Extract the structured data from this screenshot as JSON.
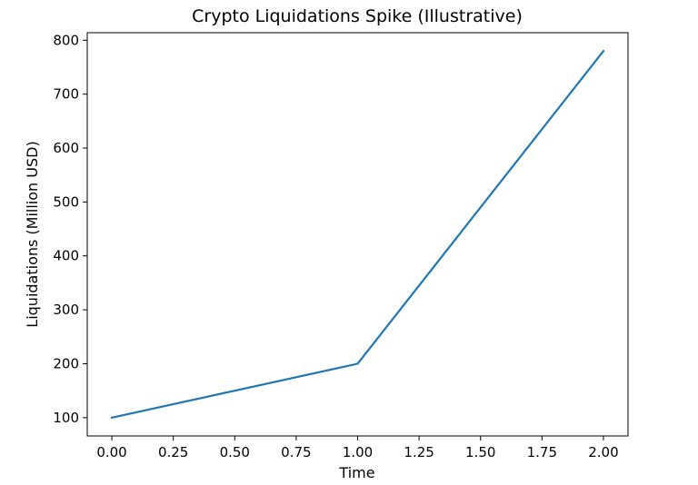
{
  "chart_data": {
    "type": "line",
    "title": "Crypto Liquidations Spike (Illustrative)",
    "xlabel": "Time",
    "ylabel": "Liquidations (Million USD)",
    "x": [
      0,
      1,
      2
    ],
    "series": [
      {
        "values": [
          100,
          200,
          780
        ],
        "color": "#1f77b4"
      }
    ],
    "xlim": [
      -0.1,
      2.1
    ],
    "ylim": [
      66,
      814
    ],
    "xticks": [
      0.0,
      0.25,
      0.5,
      0.75,
      1.0,
      1.25,
      1.5,
      1.75,
      2.0
    ],
    "xtick_labels": [
      "0.00",
      "0.25",
      "0.50",
      "0.75",
      "1.00",
      "1.25",
      "1.50",
      "1.75",
      "2.00"
    ],
    "yticks": [
      100,
      200,
      300,
      400,
      500,
      600,
      700,
      800
    ],
    "ytick_labels": [
      "100",
      "200",
      "300",
      "400",
      "500",
      "600",
      "700",
      "800"
    ],
    "grid": false,
    "legend": "none"
  }
}
